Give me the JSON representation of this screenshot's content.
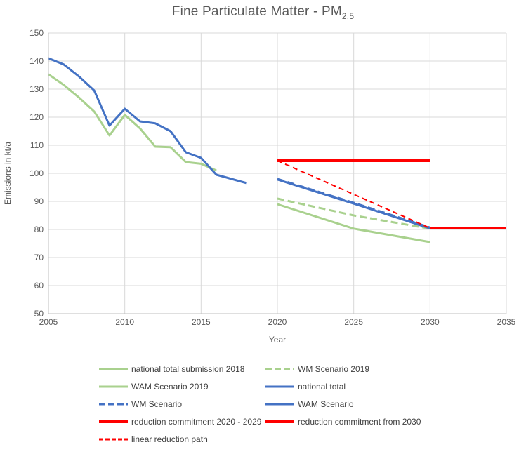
{
  "title": {
    "main": "Fine Particulate Matter - PM",
    "sub": "2.5"
  },
  "chart_data": {
    "type": "line",
    "title": "Fine Particulate Matter - PM2.5",
    "xlabel": "Year",
    "ylabel": "Emissions in kt/a",
    "xlim": [
      2005,
      2035
    ],
    "ylim": [
      50,
      150
    ],
    "xticks": [
      2005,
      2010,
      2015,
      2020,
      2025,
      2030,
      2035
    ],
    "yticks": [
      50,
      60,
      70,
      80,
      90,
      100,
      110,
      120,
      130,
      140,
      150
    ],
    "grid": true,
    "legend_position": "bottom",
    "colors": {
      "green": "#A9D18E",
      "blue": "#4472C4",
      "red": "#FF0000",
      "gridline": "#D9D9D9",
      "axis": "#BFBFBF",
      "text": "#595959",
      "legend_text": "#404040"
    },
    "series": [
      {
        "name": "national total submission 2018",
        "color": "#A9D18E",
        "dash": "solid",
        "width": 3,
        "points": [
          [
            2005,
            135.3
          ],
          [
            2006,
            131.5
          ],
          [
            2007,
            127
          ],
          [
            2008,
            122
          ],
          [
            2009,
            113.5
          ],
          [
            2010,
            120.8
          ],
          [
            2011,
            116
          ],
          [
            2012,
            109.5
          ],
          [
            2013,
            109.3
          ],
          [
            2014,
            104
          ],
          [
            2015,
            103.4
          ],
          [
            2016,
            101
          ]
        ]
      },
      {
        "name": "WM Scenario 2019",
        "color": "#A9D18E",
        "dash": "dashed",
        "width": 3,
        "points": [
          [
            2020,
            91
          ],
          [
            2025,
            85
          ],
          [
            2030,
            80.3
          ]
        ]
      },
      {
        "name": "WAM Scenario 2019",
        "color": "#A9D18E",
        "dash": "solid",
        "width": 3,
        "points": [
          [
            2020,
            89
          ],
          [
            2025,
            80.3
          ],
          [
            2030,
            75.5
          ]
        ]
      },
      {
        "name": "national total",
        "color": "#4472C4",
        "dash": "solid",
        "width": 3,
        "points": [
          [
            2005,
            141
          ],
          [
            2006,
            138.8
          ],
          [
            2007,
            134.5
          ],
          [
            2008,
            129.5
          ],
          [
            2009,
            117
          ],
          [
            2010,
            123
          ],
          [
            2011,
            118.5
          ],
          [
            2012,
            117.8
          ],
          [
            2013,
            115
          ],
          [
            2014,
            107.5
          ],
          [
            2015,
            105.5
          ],
          [
            2016,
            99.5
          ],
          [
            2017,
            98
          ],
          [
            2018,
            96.5
          ]
        ]
      },
      {
        "name": "WM Scenario",
        "color": "#4472C4",
        "dash": "dashed",
        "width": 3,
        "points": [
          [
            2020,
            98
          ],
          [
            2025,
            89.5
          ],
          [
            2030,
            80.7
          ]
        ]
      },
      {
        "name": "WAM Scenario",
        "color": "#4472C4",
        "dash": "solid",
        "width": 3,
        "points": [
          [
            2020,
            97.8
          ],
          [
            2025,
            89.2
          ],
          [
            2030,
            80.4
          ]
        ]
      },
      {
        "name": "reduction commitment 2020 - 2029",
        "color": "#FF0000",
        "dash": "solid",
        "width": 4,
        "points": [
          [
            2020,
            104.5
          ],
          [
            2030,
            104.5
          ]
        ]
      },
      {
        "name": "reduction commitment from 2030",
        "color": "#FF0000",
        "dash": "solid",
        "width": 4,
        "points": [
          [
            2030,
            80.5
          ],
          [
            2035,
            80.5
          ]
        ]
      },
      {
        "name": "linear reduction path",
        "color": "#FF0000",
        "dash": "dashed-short",
        "width": 2,
        "points": [
          [
            2020,
            104.5
          ],
          [
            2030,
            80.5
          ]
        ]
      }
    ],
    "draw_order": [
      0,
      3,
      1,
      2,
      5,
      4,
      8,
      6,
      7
    ]
  }
}
